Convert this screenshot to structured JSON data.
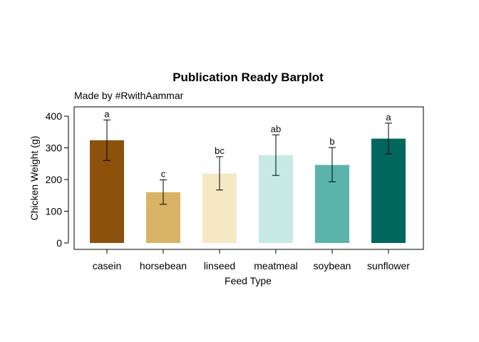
{
  "chart_data": {
    "type": "bar",
    "title": "Publication Ready Barplot",
    "subtitle": "Made by #RwithAammar",
    "xlabel": "Feed Type",
    "ylabel": "Chicken Weight (g)",
    "ylim": [
      0,
      425
    ],
    "yticks": [
      0,
      100,
      200,
      300,
      400
    ],
    "grid": false,
    "legend": "none",
    "categories": [
      "casein",
      "horsebean",
      "linseed",
      "meatmeal",
      "soybean",
      "sunflower"
    ],
    "values": [
      324,
      160,
      219,
      277,
      246,
      329
    ],
    "error_low": [
      260,
      122,
      167,
      213,
      193,
      281
    ],
    "error_high": [
      388,
      199,
      272,
      341,
      301,
      378
    ],
    "letters": [
      "a",
      "c",
      "bc",
      "ab",
      "b",
      "a"
    ],
    "colors": [
      "#8c510a",
      "#d8b365",
      "#f6e8c3",
      "#c7eae5",
      "#5ab4ac",
      "#01665e"
    ]
  }
}
